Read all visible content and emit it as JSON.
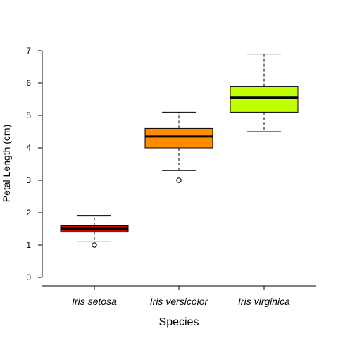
{
  "chart_data": {
    "type": "boxplot",
    "xlabel": "Species",
    "ylabel": "Petal Length (cm)",
    "ylim": [
      0,
      7
    ],
    "yticks": [
      0,
      1,
      2,
      3,
      4,
      5,
      6,
      7
    ],
    "categories": [
      "Iris setosa",
      "Iris versicolor",
      "Iris virginica"
    ],
    "boxes": [
      {
        "category": "Iris setosa",
        "color": "#cc0000",
        "whisker_low": 1.1,
        "q1": 1.4,
        "median": 1.5,
        "q3": 1.6,
        "whisker_high": 1.9,
        "outliers": [
          1.0
        ]
      },
      {
        "category": "Iris versicolor",
        "color": "#ff8c00",
        "whisker_low": 3.3,
        "q1": 4.0,
        "median": 4.35,
        "q3": 4.6,
        "whisker_high": 5.1,
        "outliers": [
          3.0
        ]
      },
      {
        "category": "Iris virginica",
        "color": "#c0ff00",
        "whisker_low": 4.5,
        "q1": 5.1,
        "median": 5.55,
        "q3": 5.9,
        "whisker_high": 6.9,
        "outliers": []
      }
    ],
    "grid": false,
    "legend": "none"
  }
}
